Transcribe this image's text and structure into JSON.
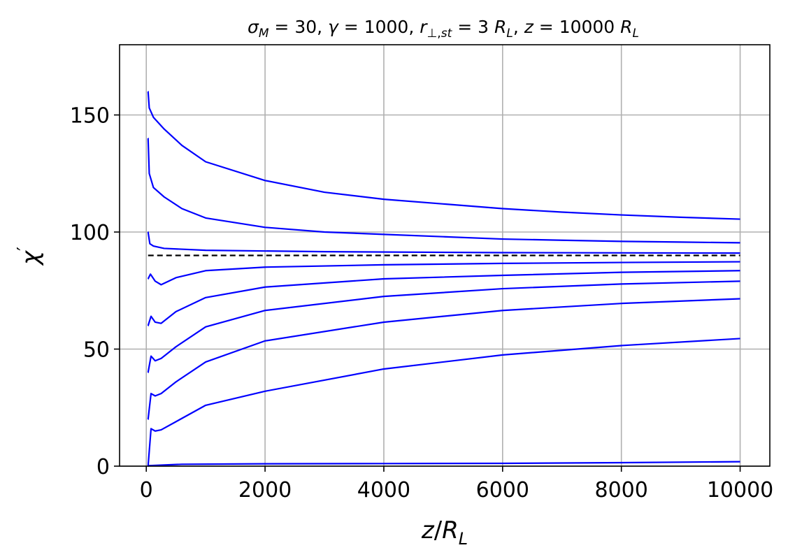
{
  "chart_data": {
    "type": "line",
    "title": "σ_M = 30, γ = 1000, r_⊥,st = 3 R_L, z = 10000 R_L",
    "title_parts": {
      "sigma_value": "30",
      "gamma_value": "1000",
      "r_value": "3",
      "z_value": "10000"
    },
    "xlabel": "z/R_L",
    "ylabel": "χ′",
    "xlim": [
      -450,
      10500
    ],
    "ylim": [
      0,
      180
    ],
    "grid": true,
    "x_ticks": [
      0,
      2000,
      4000,
      6000,
      8000,
      10000
    ],
    "y_ticks": [
      0,
      50,
      100,
      150
    ],
    "x_tick_labels": [
      "0",
      "2000",
      "4000",
      "6000",
      "8000",
      "10000"
    ],
    "y_tick_labels": [
      "0",
      "50",
      "100",
      "150"
    ],
    "reference_line": {
      "y": 90,
      "style": "dashed",
      "color": "#000000"
    },
    "series_color": "#0000ff",
    "series": [
      {
        "start": 160,
        "points": [
          [
            30,
            160
          ],
          [
            50,
            153
          ],
          [
            120,
            149
          ],
          [
            300,
            144
          ],
          [
            600,
            137
          ],
          [
            1000,
            130
          ],
          [
            2000,
            122
          ],
          [
            3000,
            117
          ],
          [
            4000,
            114
          ],
          [
            5000,
            112
          ],
          [
            6000,
            110
          ],
          [
            7000,
            108.5
          ],
          [
            8000,
            107.3
          ],
          [
            9000,
            106.3
          ],
          [
            10000,
            105.5
          ]
        ]
      },
      {
        "start": 140,
        "points": [
          [
            30,
            140
          ],
          [
            50,
            125
          ],
          [
            120,
            119
          ],
          [
            300,
            115
          ],
          [
            600,
            110
          ],
          [
            1000,
            106
          ],
          [
            2000,
            102
          ],
          [
            3000,
            100
          ],
          [
            4000,
            99
          ],
          [
            5000,
            98
          ],
          [
            6000,
            97
          ],
          [
            7000,
            96.5
          ],
          [
            8000,
            96
          ],
          [
            9000,
            95.7
          ],
          [
            10000,
            95.4
          ]
        ]
      },
      {
        "start": 100,
        "points": [
          [
            30,
            100
          ],
          [
            60,
            95
          ],
          [
            120,
            94
          ],
          [
            300,
            93
          ],
          [
            1000,
            92.2
          ],
          [
            3000,
            91.6
          ],
          [
            6000,
            91.2
          ],
          [
            10000,
            91
          ]
        ]
      },
      {
        "start": 80,
        "points": [
          [
            30,
            80
          ],
          [
            70,
            82
          ],
          [
            150,
            79
          ],
          [
            250,
            77.5
          ],
          [
            500,
            80.5
          ],
          [
            1000,
            83.5
          ],
          [
            2000,
            85
          ],
          [
            4000,
            86
          ],
          [
            6000,
            86.6
          ],
          [
            8000,
            87
          ],
          [
            10000,
            87.3
          ]
        ]
      },
      {
        "start": 60,
        "points": [
          [
            30,
            60
          ],
          [
            80,
            64
          ],
          [
            150,
            61.5
          ],
          [
            250,
            61
          ],
          [
            500,
            66
          ],
          [
            1000,
            72
          ],
          [
            2000,
            76.5
          ],
          [
            4000,
            80
          ],
          [
            6000,
            81.5
          ],
          [
            8000,
            82.8
          ],
          [
            10000,
            83.5
          ]
        ]
      },
      {
        "start": 40,
        "points": [
          [
            30,
            40
          ],
          [
            80,
            47
          ],
          [
            150,
            45
          ],
          [
            250,
            46
          ],
          [
            500,
            51
          ],
          [
            1000,
            59.5
          ],
          [
            2000,
            66.5
          ],
          [
            4000,
            72.5
          ],
          [
            6000,
            75.8
          ],
          [
            8000,
            77.8
          ],
          [
            10000,
            79
          ]
        ]
      },
      {
        "start": 20,
        "points": [
          [
            30,
            20
          ],
          [
            80,
            31
          ],
          [
            150,
            30
          ],
          [
            250,
            31
          ],
          [
            500,
            36
          ],
          [
            1000,
            44.5
          ],
          [
            2000,
            53.5
          ],
          [
            4000,
            61.5
          ],
          [
            6000,
            66.5
          ],
          [
            8000,
            69.5
          ],
          [
            10000,
            71.5
          ]
        ]
      },
      {
        "start": 0,
        "points": [
          [
            30,
            0
          ],
          [
            80,
            16
          ],
          [
            150,
            15
          ],
          [
            250,
            15.5
          ],
          [
            500,
            19
          ],
          [
            1000,
            26
          ],
          [
            2000,
            32
          ],
          [
            4000,
            41.5
          ],
          [
            6000,
            47.5
          ],
          [
            8000,
            51.5
          ],
          [
            10000,
            54.5
          ]
        ]
      },
      {
        "start": 0,
        "points": [
          [
            30,
            0.2
          ],
          [
            600,
            0.8
          ],
          [
            2000,
            1
          ],
          [
            4000,
            1.1
          ],
          [
            6000,
            1.2
          ],
          [
            8000,
            1.5
          ],
          [
            10000,
            1.9
          ]
        ]
      }
    ]
  }
}
